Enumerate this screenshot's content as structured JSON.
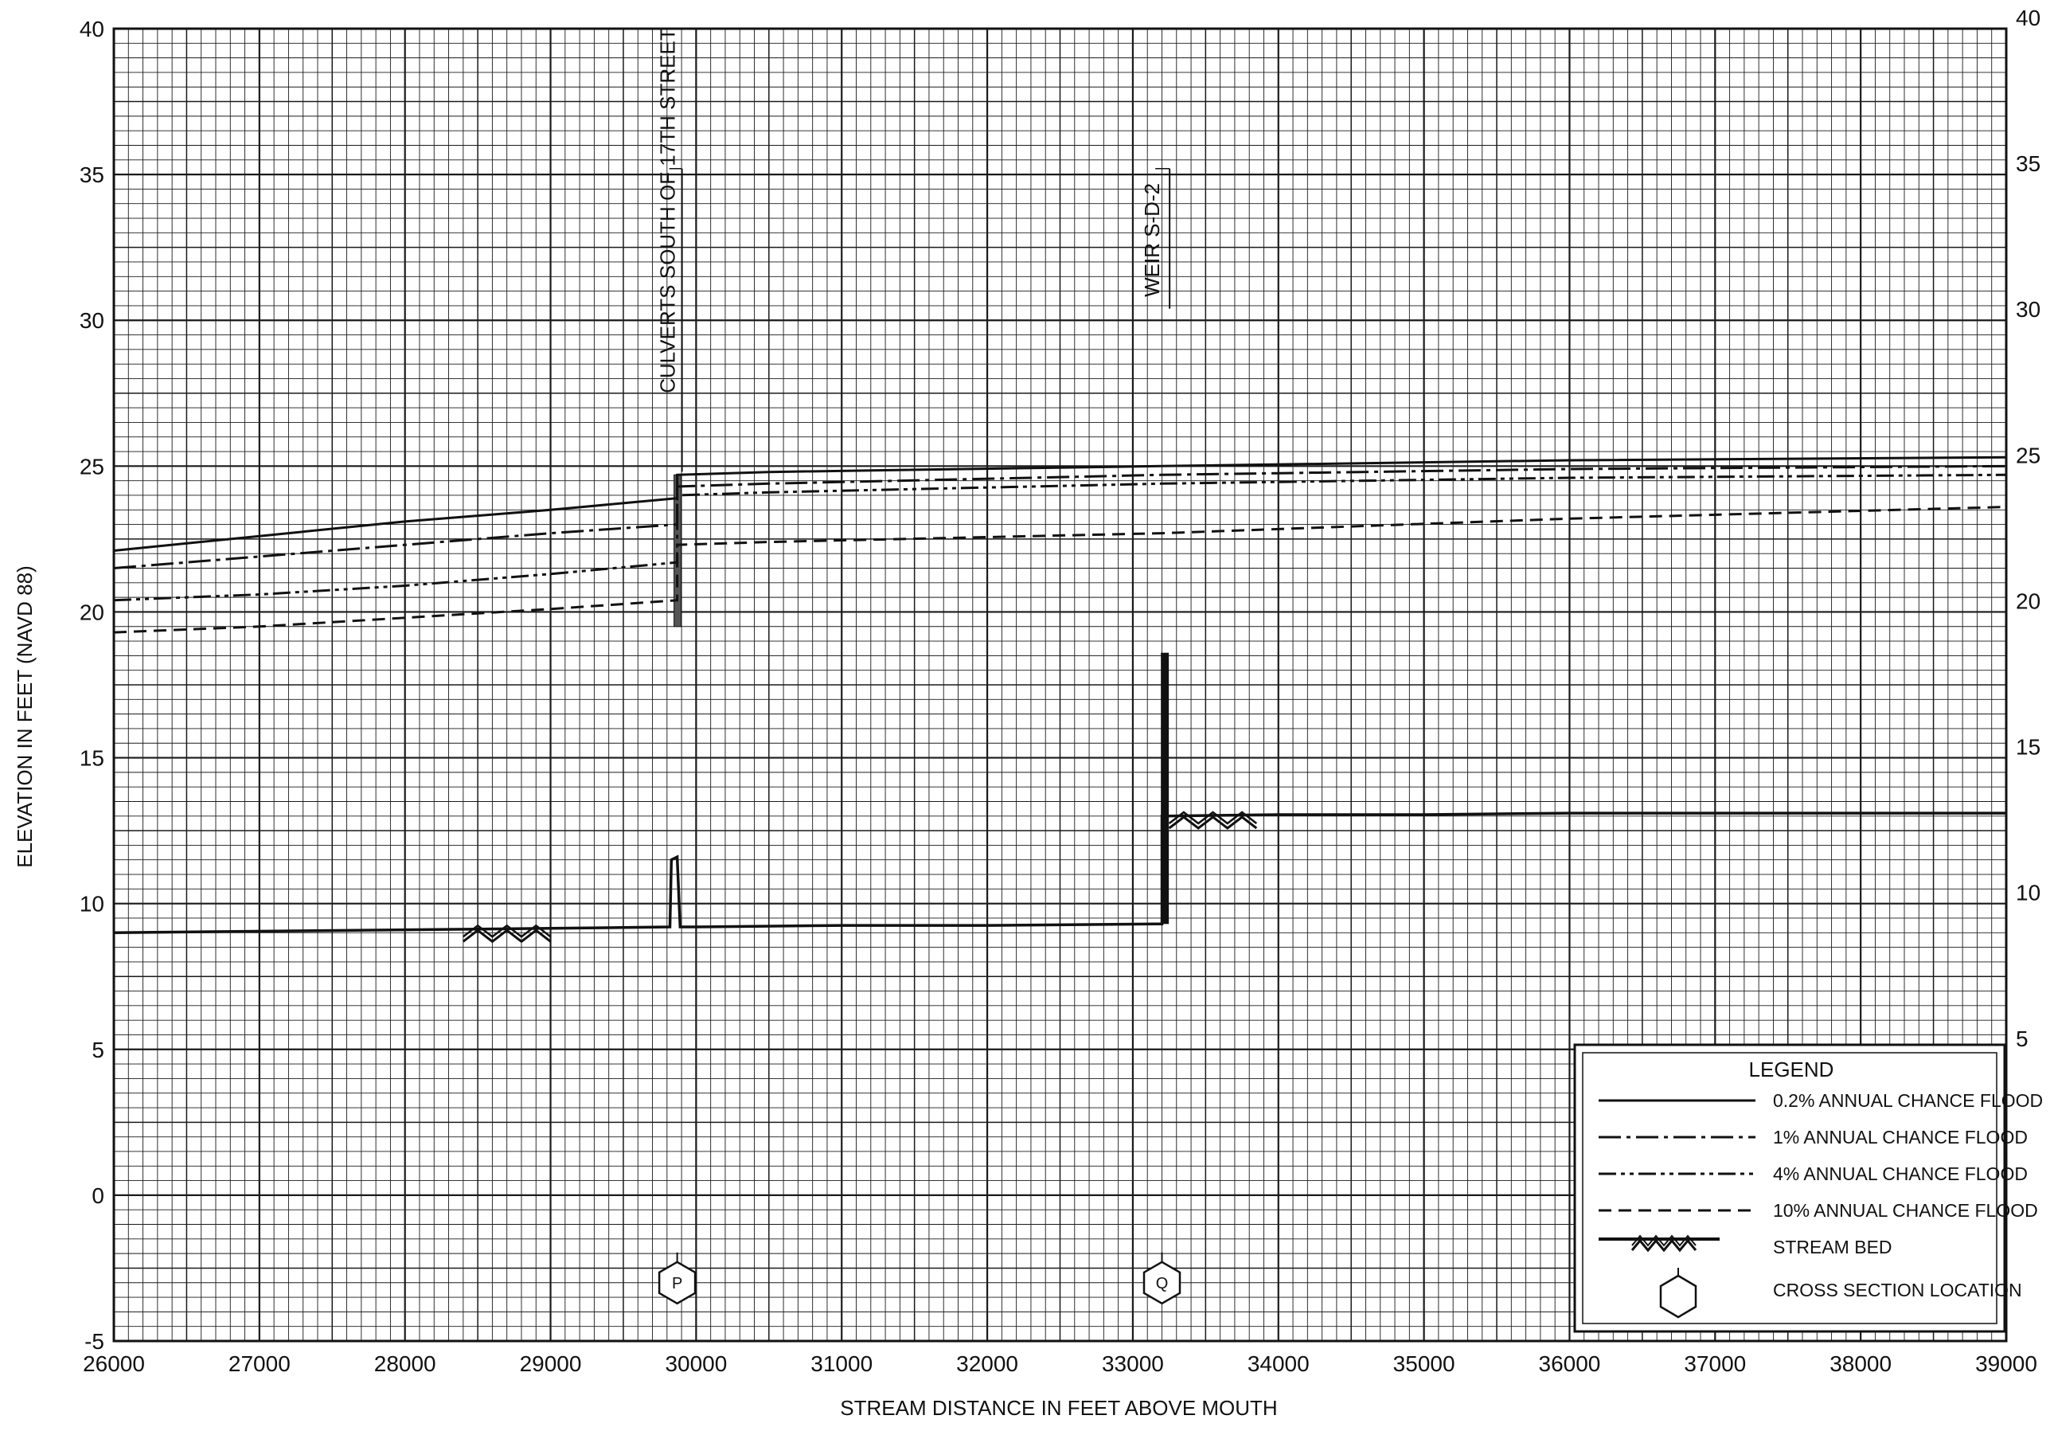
{
  "chart_data": {
    "type": "line",
    "title": "",
    "xlabel": "STREAM DISTANCE IN FEET ABOVE MOUTH",
    "ylabel": "ELEVATION IN FEET (NAVD 88)",
    "xlim": [
      26000,
      39000
    ],
    "ylim": [
      -5,
      40
    ],
    "x_ticks": [
      26000,
      27000,
      28000,
      29000,
      30000,
      31000,
      32000,
      33000,
      34000,
      35000,
      36000,
      37000,
      38000,
      39000
    ],
    "x_tick_labels": [
      "26000",
      "27000",
      "28000",
      "29000",
      "30000",
      "31000",
      "32000",
      "33000",
      "34000",
      "35000",
      "36000",
      "37000",
      "38000",
      "39000"
    ],
    "y_ticks": [
      -5,
      0,
      5,
      10,
      15,
      20,
      25,
      30,
      35,
      40
    ],
    "y_tick_labels": [
      "-5",
      "0",
      "5",
      "10",
      "15",
      "20",
      "25",
      "30",
      "35",
      "40"
    ],
    "y_right_tick_labels": [
      "5",
      "10",
      "15",
      "20",
      "25",
      "30",
      "35",
      "40"
    ],
    "grid": true,
    "series": [
      {
        "name": "0.2% ANNUAL CHANCE FLOOD",
        "style": "solid",
        "x": [
          26000,
          27000,
          28000,
          29000,
          29870,
          29870,
          30500,
          33200,
          36000,
          39000
        ],
        "y": [
          22.1,
          22.6,
          23.1,
          23.5,
          23.9,
          24.7,
          24.8,
          25.0,
          25.2,
          25.3
        ]
      },
      {
        "name": "1% ANNUAL CHANCE FLOOD",
        "style": "dashdot",
        "x": [
          26000,
          27000,
          28000,
          29000,
          29870,
          29870,
          30500,
          33200,
          36000,
          39000
        ],
        "y": [
          21.5,
          21.9,
          22.3,
          22.7,
          23.0,
          24.3,
          24.4,
          24.7,
          24.9,
          25.0
        ]
      },
      {
        "name": "4% ANNUAL CHANCE FLOOD",
        "style": "dashdotdot",
        "x": [
          26000,
          27000,
          28000,
          29000,
          29870,
          29870,
          30500,
          33200,
          36000,
          39000
        ],
        "y": [
          20.4,
          20.6,
          20.9,
          21.3,
          21.7,
          24.0,
          24.1,
          24.4,
          24.6,
          24.7
        ]
      },
      {
        "name": "10% ANNUAL CHANCE FLOOD",
        "style": "dashed",
        "x": [
          26000,
          27000,
          28000,
          29000,
          29870,
          29870,
          30500,
          33200,
          36000,
          39000
        ],
        "y": [
          19.3,
          19.5,
          19.8,
          20.1,
          20.4,
          22.3,
          22.4,
          22.7,
          23.2,
          23.6
        ]
      },
      {
        "name": "STREAM BED",
        "style": "solid",
        "x": [
          26000,
          28000,
          29000,
          29820,
          29830,
          29870,
          29890,
          29900,
          30000,
          31000,
          32000,
          33150,
          33200,
          33200,
          34000,
          35000,
          36000,
          37000,
          38000,
          39000
        ],
        "y": [
          9.0,
          9.1,
          9.15,
          9.2,
          11.5,
          11.6,
          9.2,
          9.2,
          9.2,
          9.25,
          9.25,
          9.3,
          9.3,
          13.0,
          13.05,
          13.05,
          13.1,
          13.1,
          13.1,
          13.1
        ]
      }
    ],
    "structures": [
      {
        "label": "CULVERTS SOUTH OF 17TH STREET",
        "x": 29870,
        "bar_from": 19.5,
        "bar_to": 24.7
      },
      {
        "label": "WEIR S-D-2",
        "x": 33220,
        "bar_from": 9.3,
        "bar_to": 18.6
      }
    ],
    "cross_sections": [
      {
        "label": "P",
        "x": 29870
      },
      {
        "label": "Q",
        "x": 33200
      }
    ],
    "legend": {
      "title": "LEGEND",
      "placement": "bottom-right",
      "entries": [
        "0.2% ANNUAL CHANCE FLOOD",
        "1% ANNUAL CHANCE FLOOD",
        "4% ANNUAL CHANCE FLOOD",
        "10% ANNUAL CHANCE FLOOD",
        "STREAM BED",
        "CROSS SECTION LOCATION"
      ]
    }
  }
}
